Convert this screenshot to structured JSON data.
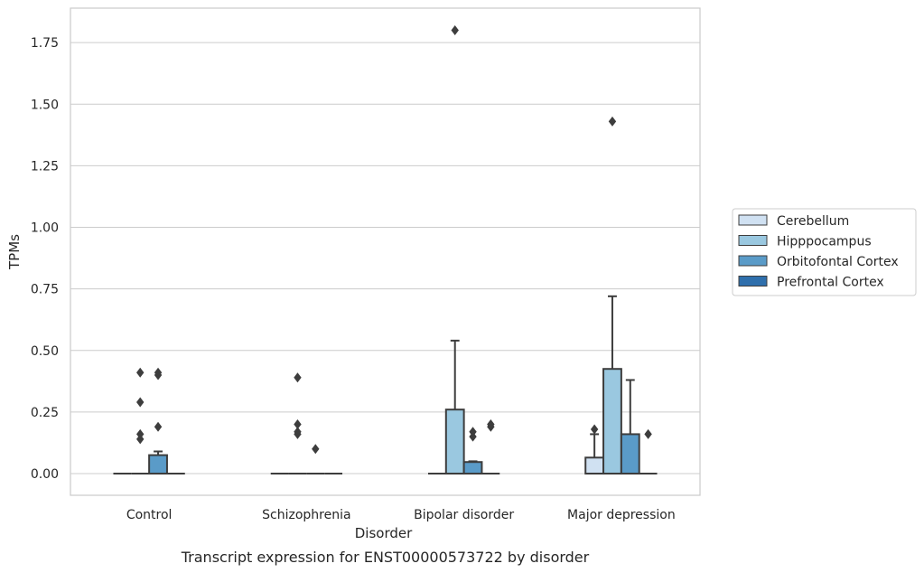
{
  "chart_data": {
    "type": "box",
    "caption": "Transcript expression for ENST00000573722 by disorder",
    "xlabel": "Disorder",
    "ylabel": "TPMs",
    "ylim": [
      -0.088,
      1.89
    ],
    "yticks": [
      0.0,
      0.25,
      0.5,
      0.75,
      1.0,
      1.25,
      1.5,
      1.75
    ],
    "ytick_labels": [
      "0.00",
      "0.25",
      "0.50",
      "0.75",
      "1.00",
      "1.25",
      "1.50",
      "1.75"
    ],
    "grid": "horizontal",
    "legend_position": "right",
    "categories": [
      "Control",
      "Schizophrenia",
      "Bipolar disorder",
      "Major depression"
    ],
    "series": [
      {
        "name": "Cerebellum",
        "color": "#d0e1f2",
        "boxes": [
          {
            "q1": 0,
            "median": 0,
            "q3": 0,
            "whisker_low": 0,
            "whisker_high": 0,
            "outliers": []
          },
          {
            "q1": 0,
            "median": 0,
            "q3": 0,
            "whisker_low": 0,
            "whisker_high": 0,
            "outliers": []
          },
          {
            "q1": 0,
            "median": 0,
            "q3": 0,
            "whisker_low": 0,
            "whisker_high": 0,
            "outliers": []
          },
          {
            "q1": 0,
            "median": 0,
            "q3": 0.065,
            "whisker_low": 0,
            "whisker_high": 0.16,
            "outliers": [
              0.18
            ]
          }
        ]
      },
      {
        "name": "Hipppocampus",
        "color": "#9ac8e0",
        "boxes": [
          {
            "q1": 0,
            "median": 0,
            "q3": 0,
            "whisker_low": 0,
            "whisker_high": 0,
            "outliers": [
              0.14,
              0.16,
              0.29,
              0.41
            ]
          },
          {
            "q1": 0,
            "median": 0,
            "q3": 0,
            "whisker_low": 0,
            "whisker_high": 0,
            "outliers": [
              0.16,
              0.2,
              0.17,
              0.39
            ]
          },
          {
            "q1": 0,
            "median": 0,
            "q3": 0.26,
            "whisker_low": 0,
            "whisker_high": 0.54,
            "outliers": [
              1.8
            ]
          },
          {
            "q1": 0,
            "median": 0,
            "q3": 0.425,
            "whisker_low": 0,
            "whisker_high": 0.72,
            "outliers": [
              1.43
            ]
          }
        ]
      },
      {
        "name": "Orbitofontal Cortex",
        "color": "#5a9bc8",
        "boxes": [
          {
            "q1": 0,
            "median": 0,
            "q3": 0.075,
            "whisker_low": 0,
            "whisker_high": 0.09,
            "outliers": [
              0.19,
              0.4,
              0.41
            ]
          },
          {
            "q1": 0,
            "median": 0,
            "q3": 0,
            "whisker_low": 0,
            "whisker_high": 0,
            "outliers": [
              0.1
            ]
          },
          {
            "q1": 0,
            "median": 0,
            "q3": 0.047,
            "whisker_low": 0,
            "whisker_high": 0.05,
            "outliers": [
              0.15,
              0.17
            ]
          },
          {
            "q1": 0,
            "median": 0,
            "q3": 0.16,
            "whisker_low": 0,
            "whisker_high": 0.38,
            "outliers": []
          }
        ]
      },
      {
        "name": "Prefrontal Cortex",
        "color": "#2f6fac",
        "boxes": [
          {
            "q1": 0,
            "median": 0,
            "q3": 0,
            "whisker_low": 0,
            "whisker_high": 0,
            "outliers": []
          },
          {
            "q1": 0,
            "median": 0,
            "q3": 0,
            "whisker_low": 0,
            "whisker_high": 0,
            "outliers": []
          },
          {
            "q1": 0,
            "median": 0,
            "q3": 0,
            "whisker_low": 0,
            "whisker_high": 0,
            "outliers": [
              0.19,
              0.2
            ]
          },
          {
            "q1": 0,
            "median": 0,
            "q3": 0,
            "whisker_low": 0,
            "whisker_high": 0,
            "outliers": [
              0.16
            ]
          }
        ]
      }
    ]
  }
}
